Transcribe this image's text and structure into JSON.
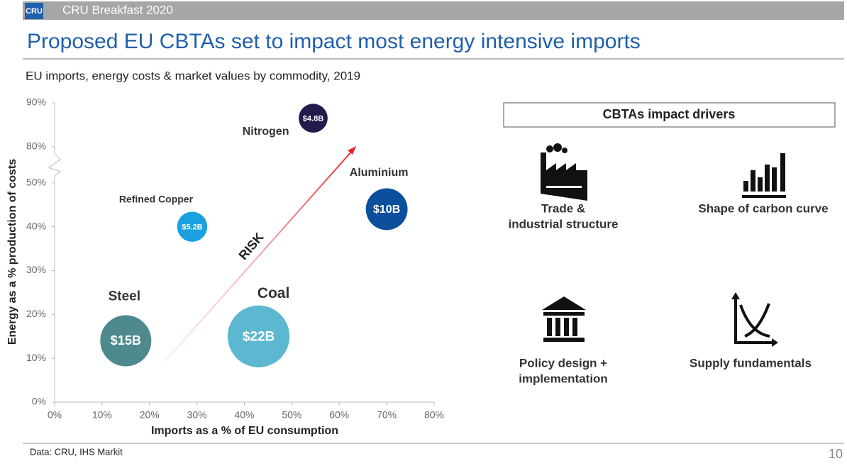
{
  "header": {
    "logo": "CRU",
    "event": "CRU Breakfast 2020"
  },
  "title": "Proposed EU CBTAs set to impact most energy intensive imports",
  "chart_data": {
    "type": "bubble",
    "title": "EU imports, energy costs & market values by commodity, 2019",
    "x_label": "Imports as a % of EU consumption",
    "y_label": "Energy as a % production of costs",
    "xlim": [
      0,
      80
    ],
    "ylim": [
      0,
      90
    ],
    "ybreak": [
      50,
      80
    ],
    "xticks": [
      {
        "value": 0,
        "label": "0%"
      },
      {
        "value": 10,
        "label": "10%"
      },
      {
        "value": 20,
        "label": "20%"
      },
      {
        "value": 30,
        "label": "30%"
      },
      {
        "value": 40,
        "label": "40%"
      },
      {
        "value": 50,
        "label": "50%"
      },
      {
        "value": 60,
        "label": "60%"
      },
      {
        "value": 70,
        "label": "70%"
      },
      {
        "value": 80,
        "label": "80%"
      }
    ],
    "yticks": [
      {
        "value": 0,
        "label": "0%"
      },
      {
        "value": 10,
        "label": "10%"
      },
      {
        "value": 20,
        "label": "20%"
      },
      {
        "value": 30,
        "label": "30%"
      },
      {
        "value": 40,
        "label": "40%"
      },
      {
        "value": 50,
        "label": "50%"
      },
      {
        "value": 80,
        "label": "80%"
      },
      {
        "value": 90,
        "label": "90%"
      }
    ],
    "series": [
      {
        "name": "Steel",
        "color": "#4e8a8d",
        "x": [
          15
        ],
        "values": [
          14
        ],
        "sizes": [
          15
        ],
        "value_labels": [
          "$15B"
        ]
      },
      {
        "name": "Coal",
        "color": "#5bb8d0",
        "x": [
          43
        ],
        "values": [
          15
        ],
        "sizes": [
          22
        ],
        "value_labels": [
          "$22B"
        ]
      },
      {
        "name": "Refined Copper",
        "color": "#1ba0e0",
        "x": [
          29
        ],
        "values": [
          40
        ],
        "sizes": [
          5.2
        ],
        "value_labels": [
          "$5.2B"
        ]
      },
      {
        "name": "Aluminium",
        "color": "#0c4f9c",
        "x": [
          70
        ],
        "values": [
          44
        ],
        "sizes": [
          10
        ],
        "value_labels": [
          "$10B"
        ]
      },
      {
        "name": "Nitrogen",
        "color": "#231b4b",
        "x": [
          54.5
        ],
        "values": [
          86.5
        ],
        "sizes": [
          4.8
        ],
        "value_labels": [
          "$4.8B"
        ]
      }
    ],
    "annotation": "RISK"
  },
  "drivers": {
    "title": "CBTAs impact drivers",
    "items": [
      [
        "Trade &",
        "industrial structure"
      ],
      [
        "Shape of carbon curve"
      ],
      [
        "Policy design +",
        "implementation"
      ],
      [
        "Supply fundamentals"
      ]
    ]
  },
  "footer": {
    "source": "Data: CRU, IHS Markit",
    "page": "10"
  }
}
